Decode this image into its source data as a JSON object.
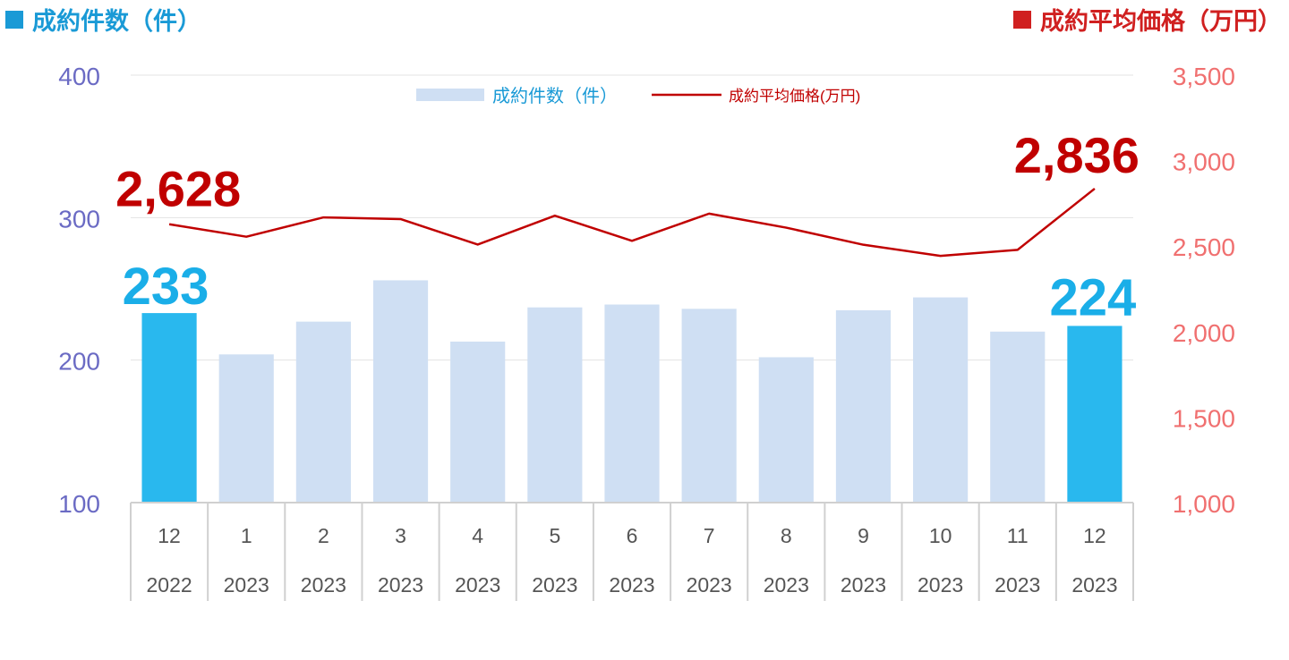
{
  "titles": {
    "left": "成約件数（件）",
    "right": "成約平均価格（万円）"
  },
  "colors": {
    "left_axis": "#6b6bc4",
    "right_axis": "#f07070",
    "bar_highlight": "#29b8ee",
    "bar_normal": "#cfdff3",
    "line": "#c00000",
    "highlight_label": "#1aaee8",
    "line_label": "#c00000",
    "left_title": "#1a9ad6",
    "left_square": "#1a9ad6",
    "right_title": "#d02020",
    "right_square": "#d02020"
  },
  "legend": {
    "bars": "成約件数（件）",
    "line": "成約平均価格(万円)"
  },
  "chart_data": {
    "type": "bar",
    "categories": [
      "12",
      "1",
      "2",
      "3",
      "4",
      "5",
      "6",
      "7",
      "8",
      "9",
      "10",
      "11",
      "12"
    ],
    "years": [
      "2022",
      "2023",
      "2023",
      "2023",
      "2023",
      "2023",
      "2023",
      "2023",
      "2023",
      "2023",
      "2023",
      "2023",
      "2023"
    ],
    "series": [
      {
        "name": "成約件数（件）",
        "axis": "left",
        "kind": "bar",
        "values": [
          233,
          204,
          227,
          256,
          213,
          237,
          239,
          236,
          202,
          235,
          244,
          220,
          224
        ],
        "highlight": [
          true,
          false,
          false,
          false,
          false,
          false,
          false,
          false,
          false,
          false,
          false,
          false,
          true
        ]
      },
      {
        "name": "成約平均価格(万円)",
        "axis": "right",
        "kind": "line",
        "values": [
          2628,
          2555,
          2668,
          2658,
          2509,
          2678,
          2531,
          2690,
          2608,
          2508,
          2443,
          2478,
          2836
        ]
      }
    ],
    "left_axis": {
      "ylim": [
        100,
        400
      ],
      "ticks": [
        "400",
        "300",
        "200",
        "100"
      ],
      "tick_values": [
        400,
        300,
        200,
        100
      ]
    },
    "right_axis": {
      "ylim": [
        1000,
        3500
      ],
      "ticks": [
        "3,500",
        "3,000",
        "2,500",
        "2,000",
        "1,500",
        "1,000"
      ],
      "tick_values": [
        3500,
        3000,
        2500,
        2000,
        1500,
        1000
      ]
    },
    "annotations": {
      "bar_first": "233",
      "bar_last": "224",
      "line_first": "2,628",
      "line_last": "2,836"
    },
    "grid": true,
    "legend_position": "top-center"
  }
}
